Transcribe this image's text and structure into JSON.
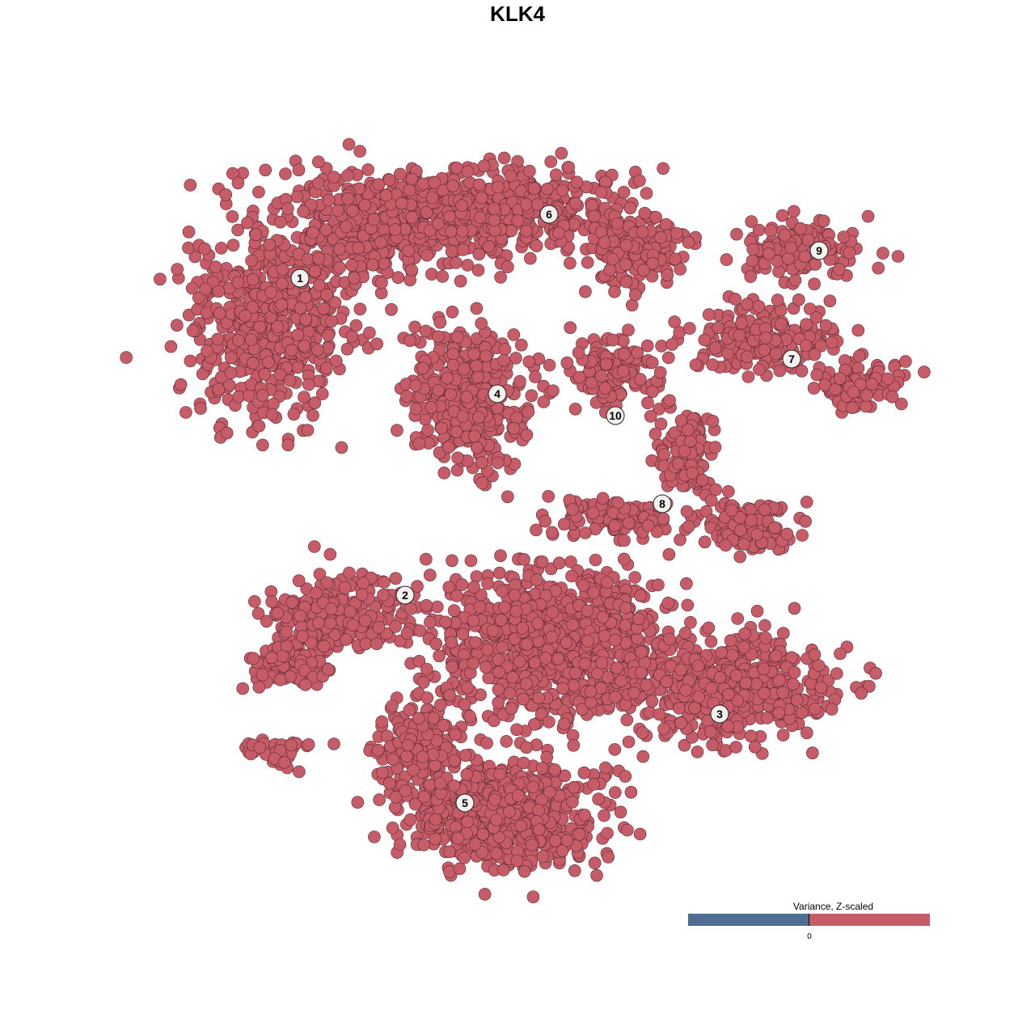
{
  "chart_data": {
    "type": "scatter",
    "title": "KLK4",
    "xlabel": "",
    "ylabel": "",
    "grid": false,
    "point_color": "#c65c68",
    "point_stroke": "#5a2a30",
    "cluster_labels": [
      {
        "label": "1",
        "x": -26.9,
        "y": 29.6
      },
      {
        "label": "2",
        "x": -13.9,
        "y": -9.6
      },
      {
        "label": "3",
        "x": 25.0,
        "y": -24.3
      },
      {
        "label": "4",
        "x": -2.5,
        "y": 15.3
      },
      {
        "label": "5",
        "x": -6.5,
        "y": -35.3
      },
      {
        "label": "6",
        "x": 3.9,
        "y": 37.5
      },
      {
        "label": "7",
        "x": 33.9,
        "y": 19.6
      },
      {
        "label": "8",
        "x": 17.9,
        "y": 1.7
      },
      {
        "label": "9",
        "x": 37.3,
        "y": 33.0
      },
      {
        "label": "10",
        "x": 12.1,
        "y": 12.6
      }
    ],
    "legend": {
      "title": "Variance, Z-scaled",
      "tick_label": "0",
      "low_color": "#4f6d90",
      "high_color": "#c65c68",
      "placement": "bottom-right"
    }
  }
}
